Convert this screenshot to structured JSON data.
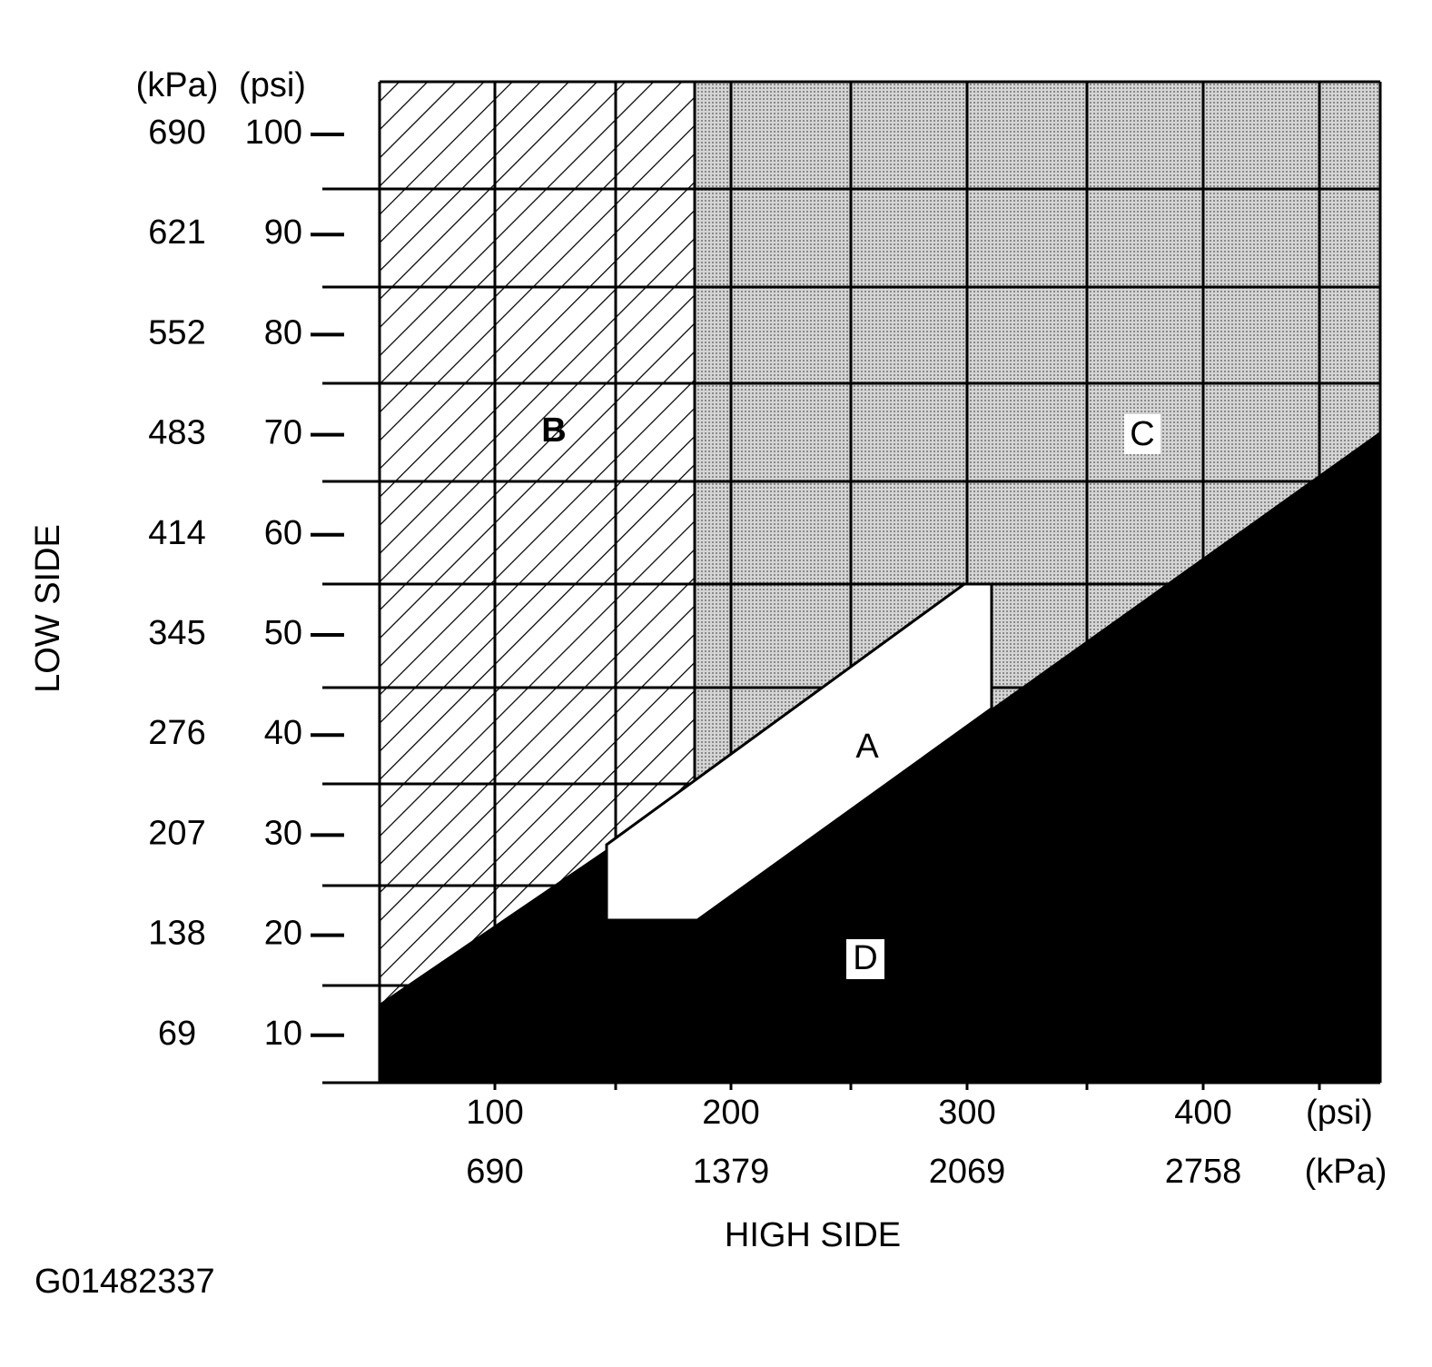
{
  "y_axis": {
    "title": "LOW SIDE",
    "unit_kpa": "(kPa)",
    "unit_psi": "(psi)",
    "ticks": [
      {
        "kpa": 690,
        "psi": 100
      },
      {
        "kpa": 621,
        "psi": 90
      },
      {
        "kpa": 552,
        "psi": 80
      },
      {
        "kpa": 483,
        "psi": 70
      },
      {
        "kpa": 414,
        "psi": 60
      },
      {
        "kpa": 345,
        "psi": 50
      },
      {
        "kpa": 276,
        "psi": 40
      },
      {
        "kpa": 207,
        "psi": 30
      },
      {
        "kpa": 138,
        "psi": 20
      },
      {
        "kpa": 69,
        "psi": 10
      }
    ]
  },
  "x_axis": {
    "title": "HIGH SIDE",
    "unit_psi": "(psi)",
    "unit_kpa": "(kPa)",
    "ticks": [
      {
        "psi": 100,
        "kpa": 690
      },
      {
        "psi": 200,
        "kpa": 1379
      },
      {
        "psi": 300,
        "kpa": 2069
      },
      {
        "psi": 400,
        "kpa": 2758
      }
    ]
  },
  "regions": {
    "a": "A",
    "b": "B",
    "c": "C",
    "d": "D"
  },
  "figure_id": "G01482337"
}
